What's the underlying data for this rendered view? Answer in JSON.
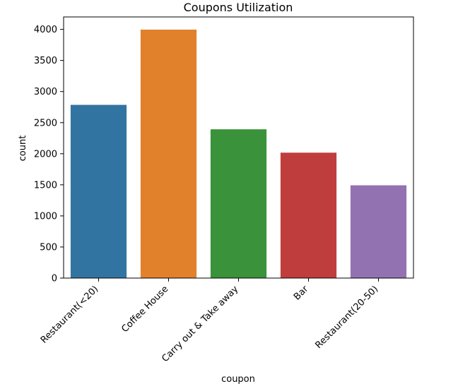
{
  "chart_data": {
    "type": "bar",
    "title": "Coupons Utilization",
    "xlabel": "coupon",
    "ylabel": "count",
    "categories": [
      "Restaurant(<20)",
      "Coffee House",
      "Carry out & Take away",
      "Bar",
      "Restaurant(20-50)"
    ],
    "values": [
      2786,
      3996,
      2393,
      2017,
      1492
    ],
    "colors": [
      "#3274a1",
      "#e1812c",
      "#3a923a",
      "#c03d3e",
      "#9372b2"
    ],
    "ylim": [
      0,
      4200
    ],
    "yticks": [
      0,
      500,
      1000,
      1500,
      2000,
      2500,
      3000,
      3500,
      4000
    ],
    "grid": false,
    "legend": "none"
  }
}
